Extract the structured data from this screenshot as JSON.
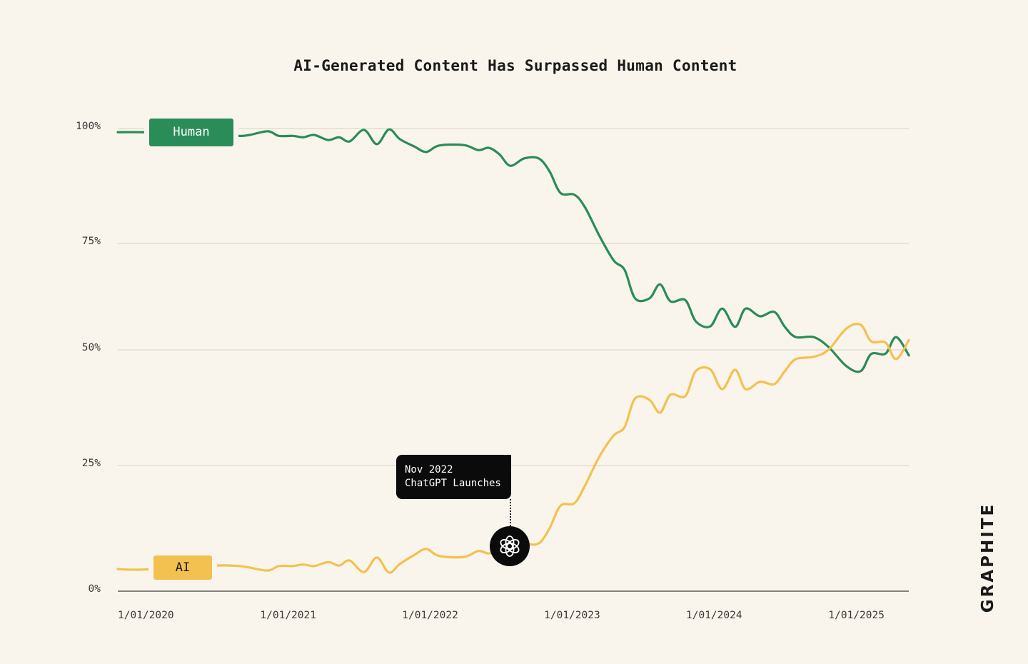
{
  "chart_data": {
    "type": "line",
    "title": "AI-Generated Content Has Surpassed Human Content",
    "xlabel": "",
    "ylabel": "",
    "ylim": [
      0,
      100
    ],
    "xlim": [
      "2020-01-01",
      "2025-07-27"
    ],
    "y_ticks": [
      "0%",
      "25%",
      "50%",
      "75%",
      "100%"
    ],
    "y_tick_values": [
      0,
      25,
      50,
      75,
      100
    ],
    "x_ticks": [
      "1/01/2020",
      "1/01/2021",
      "1/01/2022",
      "1/01/2023",
      "1/01/2024",
      "1/01/2025"
    ],
    "x_tick_values": [
      "2020-01-01",
      "2021-01-01",
      "2022-01-01",
      "2023-01-01",
      "2024-01-01",
      "2025-01-01"
    ],
    "grid": true,
    "legend": "inline-labels-left",
    "x": [
      "2020-01-01",
      "2020-03-05",
      "2020-09-05",
      "2020-11-07",
      "2020-12-05",
      "2021-01-21",
      "2021-02-18",
      "2021-03-26",
      "2021-04-22",
      "2021-05-20",
      "2021-06-25",
      "2021-07-23",
      "2021-08-19",
      "2021-09-25",
      "2021-10-28",
      "2021-11-28",
      "2021-12-26",
      "2022-02-01",
      "2022-03-04",
      "2022-04-06",
      "2022-06-09",
      "2022-07-16",
      "2022-08-12",
      "2022-09-08",
      "2022-10-06",
      "2022-11-11",
      "2022-12-18",
      "2023-01-15",
      "2023-02-12",
      "2023-03-20",
      "2023-04-16",
      "2023-05-23",
      "2023-06-29",
      "2023-07-27",
      "2023-08-23",
      "2023-09-29",
      "2023-10-26",
      "2023-11-22",
      "2023-12-30",
      "2024-01-26",
      "2024-03-03",
      "2024-04-03",
      "2024-05-06",
      "2024-06-02",
      "2024-07-09",
      "2024-08-15",
      "2024-09-11",
      "2024-10-09",
      "2024-11-24",
      "2025-01-01",
      "2025-02-16",
      "2025-03-25",
      "2025-04-21",
      "2025-05-28",
      "2025-06-24",
      "2025-07-27"
    ],
    "series": [
      {
        "name": "Human",
        "color": "#2a8c59",
        "values": [
          99.2,
          99.2,
          99.0,
          98.4,
          98.6,
          99.4,
          98.4,
          98.4,
          98.1,
          98.6,
          97.5,
          98.1,
          97.2,
          99.7,
          96.6,
          99.8,
          97.7,
          96.1,
          94.9,
          96.3,
          96.4,
          95.3,
          95.8,
          94.4,
          91.9,
          93.5,
          93.5,
          90.7,
          86.0,
          85.6,
          82.9,
          76.7,
          71.0,
          68.8,
          62.1,
          62.1,
          65.4,
          61.4,
          61.7,
          56.7,
          55.5,
          59.7,
          55.4,
          59.7,
          57.9,
          58.9,
          55.4,
          53.0,
          53.0,
          50.7,
          46.5,
          45.4,
          49.1,
          49.2,
          53.0,
          48.8
        ]
      },
      {
        "name": "AI",
        "color": "#f3c150",
        "values": [
          4.4,
          4.3,
          5.1,
          5.0,
          4.7,
          4.1,
          5.0,
          5.0,
          5.3,
          5.0,
          5.8,
          5.1,
          6.1,
          3.8,
          6.7,
          3.7,
          5.4,
          7.2,
          8.4,
          7.0,
          6.8,
          8.0,
          7.5,
          8.2,
          9.1,
          9.4,
          9.5,
          12.5,
          17.0,
          17.5,
          21.0,
          26.9,
          31.5,
          33.3,
          39.5,
          39.2,
          36.4,
          40.3,
          40.0,
          45.4,
          45.8,
          41.5,
          45.7,
          41.5,
          43.1,
          42.6,
          45.4,
          48.0,
          48.5,
          50.0,
          55.0,
          55.9,
          52.0,
          51.7,
          48.0,
          52.3
        ]
      }
    ],
    "annotations": [
      {
        "date": "2022-11-30",
        "line1": "Nov 2022",
        "line2": "ChatGPT Launches",
        "icon": "openai-logo-icon"
      }
    ]
  },
  "logo": "GRAPHITE",
  "colors": {
    "background": "#faf5ec",
    "human": "#2a8c59",
    "ai": "#f3c150",
    "grid": "#d8d0c4"
  }
}
